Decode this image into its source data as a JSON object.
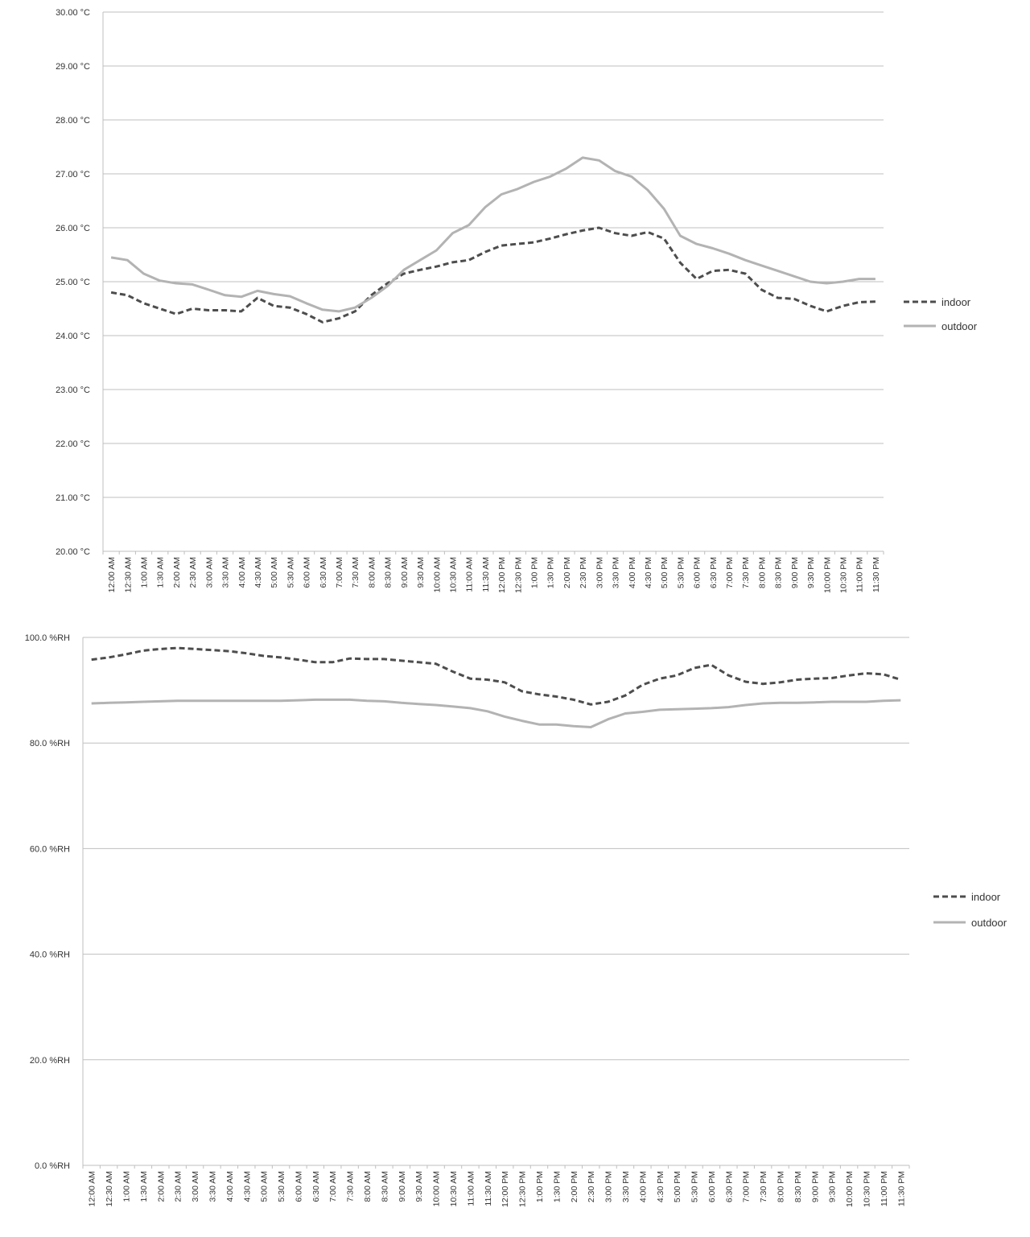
{
  "chart_data": [
    {
      "type": "line",
      "title": "",
      "xlabel": "",
      "ylabel": "",
      "ylim": [
        20,
        30
      ],
      "y_ticks": [
        "20.00 °C",
        "21.00 °C",
        "22.00 °C",
        "23.00 °C",
        "24.00 °C",
        "25.00 °C",
        "26.00 °C",
        "27.00 °C",
        "28.00 °C",
        "29.00 °C",
        "30.00 °C"
      ],
      "categories": [
        "12:00 AM",
        "12:30 AM",
        "1:00 AM",
        "1:30 AM",
        "2:00 AM",
        "2:30 AM",
        "3:00 AM",
        "3:30 AM",
        "4:00 AM",
        "4:30 AM",
        "5:00 AM",
        "5:30 AM",
        "6:00 AM",
        "6:30 AM",
        "7:00 AM",
        "7:30 AM",
        "8:00 AM",
        "8:30 AM",
        "9:00 AM",
        "9:30 AM",
        "10:00 AM",
        "10:30 AM",
        "11:00 AM",
        "11:30 AM",
        "12:00 PM",
        "12:30 PM",
        "1:00 PM",
        "1:30 PM",
        "2:00 PM",
        "2:30 PM",
        "3:00 PM",
        "3:30 PM",
        "4:00 PM",
        "4:30 PM",
        "5:00 PM",
        "5:30 PM",
        "6:00 PM",
        "6:30 PM",
        "7:00 PM",
        "7:30 PM",
        "8:00 PM",
        "8:30 PM",
        "9:00 PM",
        "9:30 PM",
        "10:00 PM",
        "10:30 PM",
        "11:00 PM",
        "11:30 PM"
      ],
      "grid": true,
      "legend_position": "right",
      "series": [
        {
          "name": "indoor",
          "style": "dashed",
          "color": "#4d4d4d",
          "values": [
            24.8,
            24.75,
            24.6,
            24.5,
            24.4,
            24.5,
            24.47,
            24.47,
            24.45,
            24.7,
            24.55,
            24.52,
            24.4,
            24.25,
            24.32,
            24.45,
            24.75,
            24.97,
            25.15,
            25.22,
            25.28,
            25.36,
            25.4,
            25.55,
            25.67,
            25.7,
            25.73,
            25.8,
            25.88,
            25.95,
            26.0,
            25.9,
            25.85,
            25.92,
            25.8,
            25.35,
            25.05,
            25.2,
            25.22,
            25.15,
            24.85,
            24.7,
            24.68,
            24.55,
            24.45,
            24.55,
            24.62,
            24.63
          ]
        },
        {
          "name": "outdoor",
          "style": "solid",
          "color": "#b3b3b3",
          "values": [
            25.45,
            25.4,
            25.15,
            25.02,
            24.97,
            24.95,
            24.85,
            24.75,
            24.72,
            24.83,
            24.77,
            24.73,
            24.6,
            24.48,
            24.45,
            24.52,
            24.7,
            24.92,
            25.22,
            25.4,
            25.58,
            25.9,
            26.05,
            26.38,
            26.62,
            26.72,
            26.85,
            26.95,
            27.1,
            27.3,
            27.25,
            27.05,
            26.95,
            26.7,
            26.35,
            25.85,
            25.7,
            25.62,
            25.52,
            25.4,
            25.3,
            25.2,
            25.1,
            25.0,
            24.97,
            25.0,
            25.05,
            25.05
          ]
        }
      ]
    },
    {
      "type": "line",
      "title": "",
      "xlabel": "",
      "ylabel": "",
      "ylim": [
        0,
        100
      ],
      "y_ticks": [
        "0.0 %RH",
        "20.0 %RH",
        "40.0 %RH",
        "60.0 %RH",
        "80.0 %RH",
        "100.0 %RH"
      ],
      "categories": [
        "12:00 AM",
        "12:30 AM",
        "1:00 AM",
        "1:30 AM",
        "2:00 AM",
        "2:30 AM",
        "3:00 AM",
        "3:30 AM",
        "4:00 AM",
        "4:30 AM",
        "5:00 AM",
        "5:30 AM",
        "6:00 AM",
        "6:30 AM",
        "7:00 AM",
        "7:30 AM",
        "8:00 AM",
        "8:30 AM",
        "9:00 AM",
        "9:30 AM",
        "10:00 AM",
        "10:30 AM",
        "11:00 AM",
        "11:30 AM",
        "12:00 PM",
        "12:30 PM",
        "1:00 PM",
        "1:30 PM",
        "2:00 PM",
        "2:30 PM",
        "3:00 PM",
        "3:30 PM",
        "4:00 PM",
        "4:30 PM",
        "5:00 PM",
        "5:30 PM",
        "6:00 PM",
        "6:30 PM",
        "7:00 PM",
        "7:30 PM",
        "8:00 PM",
        "8:30 PM",
        "9:00 PM",
        "9:30 PM",
        "10:00 PM",
        "10:30 PM",
        "11:00 PM",
        "11:30 PM"
      ],
      "grid": true,
      "legend_position": "right",
      "series": [
        {
          "name": "indoor",
          "style": "dashed",
          "color": "#4d4d4d",
          "values": [
            95.8,
            96.2,
            96.8,
            97.5,
            97.8,
            98.0,
            97.8,
            97.6,
            97.4,
            97.0,
            96.5,
            96.2,
            95.8,
            95.3,
            95.3,
            96.0,
            95.9,
            95.9,
            95.6,
            95.3,
            95.0,
            93.5,
            92.2,
            92.0,
            91.5,
            89.8,
            89.2,
            88.8,
            88.2,
            87.3,
            87.8,
            89.0,
            91.0,
            92.2,
            92.8,
            94.2,
            94.8,
            92.8,
            91.6,
            91.2,
            91.5,
            92.0,
            92.2,
            92.3,
            92.8,
            93.2,
            93.0,
            92.0
          ]
        },
        {
          "name": "outdoor",
          "style": "solid",
          "color": "#b3b3b3",
          "values": [
            87.5,
            87.6,
            87.7,
            87.8,
            87.9,
            88.0,
            88.0,
            88.0,
            88.0,
            88.0,
            88.0,
            88.0,
            88.1,
            88.2,
            88.2,
            88.2,
            88.0,
            87.9,
            87.6,
            87.4,
            87.2,
            86.9,
            86.6,
            86.0,
            85.0,
            84.2,
            83.5,
            83.5,
            83.2,
            83.0,
            84.5,
            85.6,
            85.9,
            86.3,
            86.4,
            86.5,
            86.6,
            86.8,
            87.2,
            87.5,
            87.6,
            87.6,
            87.7,
            87.8,
            87.8,
            87.8,
            88.0,
            88.1
          ]
        }
      ]
    }
  ]
}
